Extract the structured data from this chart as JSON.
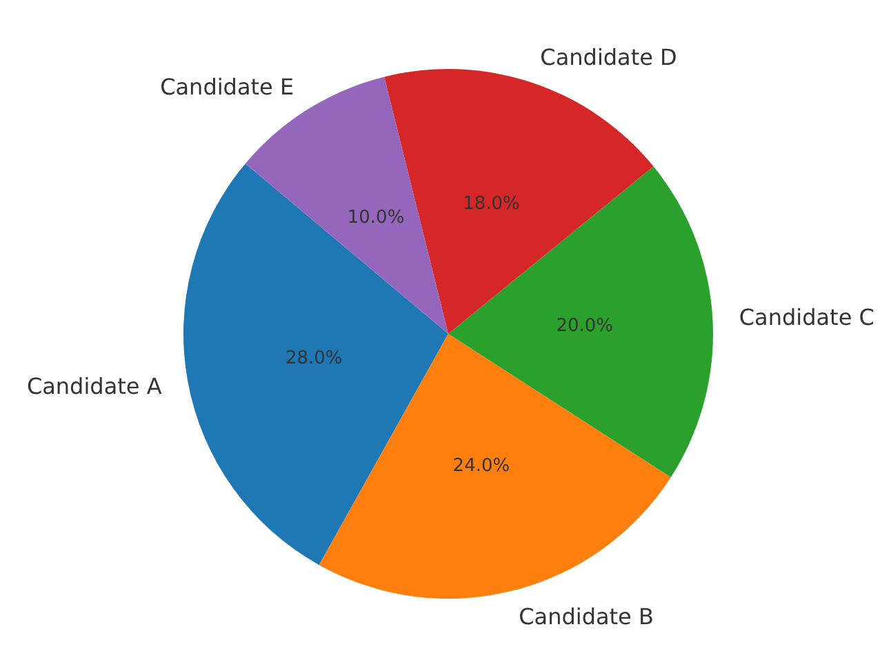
{
  "chart_data": {
    "type": "pie",
    "categories": [
      "Candidate A",
      "Candidate B",
      "Candidate C",
      "Candidate D",
      "Candidate E"
    ],
    "values": [
      28,
      24,
      20,
      18,
      10
    ],
    "value_labels": [
      "28.0%",
      "24.0%",
      "20.0%",
      "18.0%",
      "10.0%"
    ],
    "colors": [
      "#1f77b4",
      "#ff7f0e",
      "#2ca02c",
      "#d62728",
      "#9467bd"
    ]
  }
}
